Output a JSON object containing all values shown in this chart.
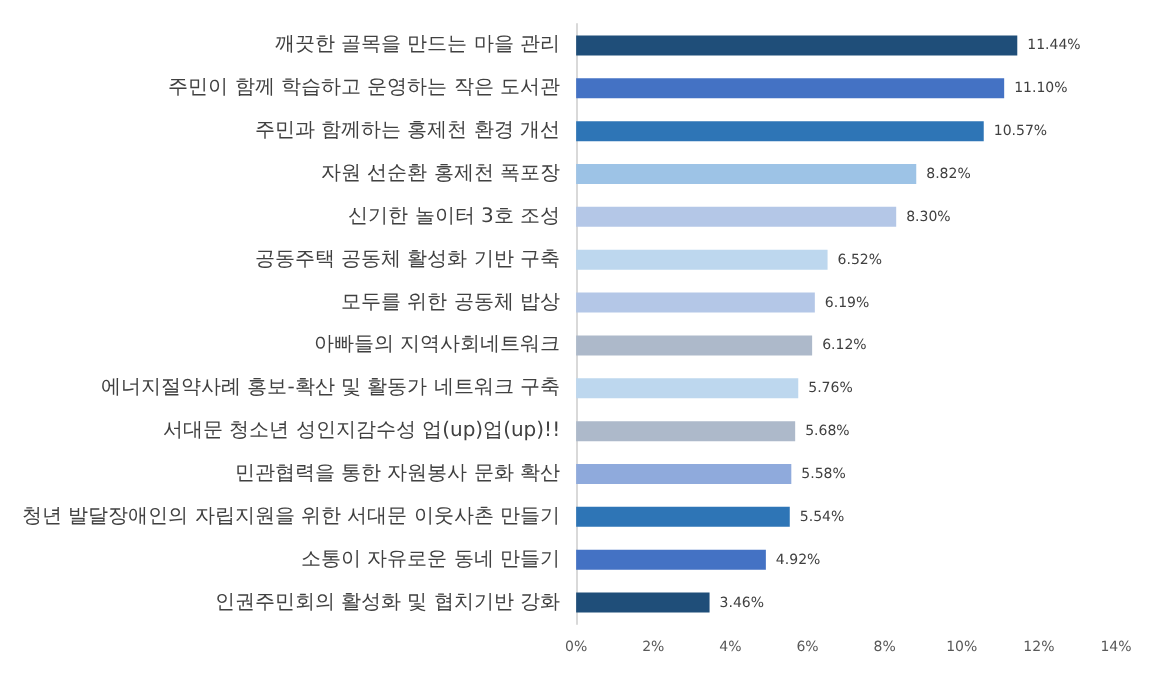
{
  "chart_data": {
    "type": "bar",
    "orientation": "horizontal",
    "categories": [
      "깨끗한 골목을 만드는 마을 관리",
      "주민이 함께 학습하고 운영하는 작은 도서관",
      "주민과 함께하는 홍제천 환경 개선",
      "자원 선순환 홍제천 폭포장",
      "신기한 놀이터 3호 조성",
      "공동주택 공동체 활성화 기반 구축",
      "모두를 위한 공동체 밥상",
      "아빠들의 지역사회네트워크",
      "에너지절약사례 홍보-확산 및 활동가 네트워크 구축",
      "서대문 청소년 성인지감수성 업(up)업(up)!!",
      "민관협력을 통한 자원봉사 문화 확산",
      "청년 발달장애인의 자립지원을 위한 서대문 이웃사촌 만들기",
      "소통이 자유로운 동네 만들기",
      "인권주민회의 활성화 및 협치기반 강화"
    ],
    "values": [
      11.44,
      11.1,
      10.57,
      8.82,
      8.3,
      6.52,
      6.19,
      6.12,
      5.76,
      5.68,
      5.58,
      5.54,
      4.92,
      3.46
    ],
    "value_labels": [
      "11.44%",
      "11.10%",
      "10.57%",
      "8.82%",
      "8.30%",
      "6.52%",
      "6.19%",
      "6.12%",
      "5.76%",
      "5.68%",
      "5.58%",
      "5.54%",
      "4.92%",
      "3.46%"
    ],
    "colors": [
      "#1f4e79",
      "#4472c4",
      "#2e75b6",
      "#9dc3e6",
      "#b4c7e7",
      "#bdd7ee",
      "#b4c7e7",
      "#adb9ca",
      "#bdd7ee",
      "#adb9ca",
      "#8faadc",
      "#2e75b6",
      "#4472c4",
      "#1f4e79"
    ],
    "xlim": [
      0,
      14
    ],
    "xticks": [
      {
        "value": 0,
        "label": "0%"
      },
      {
        "value": 2,
        "label": "2%"
      },
      {
        "value": 4,
        "label": "4%"
      },
      {
        "value": 6,
        "label": "6%"
      },
      {
        "value": 8,
        "label": "8%"
      },
      {
        "value": 10,
        "label": "10%"
      },
      {
        "value": 12,
        "label": "12%"
      },
      {
        "value": 14,
        "label": "14%"
      }
    ],
    "grid": false
  }
}
